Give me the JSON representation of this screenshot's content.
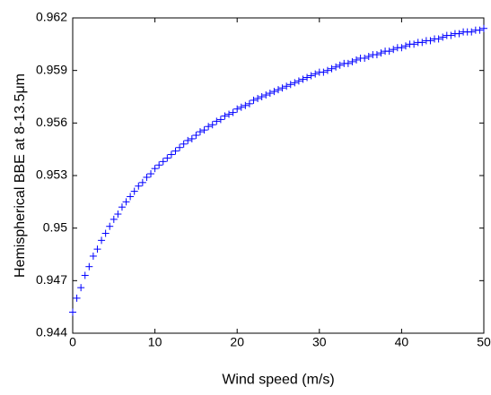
{
  "chart_data": {
    "type": "scatter",
    "title": "",
    "xlabel": "Wind speed (m/s)",
    "ylabel": "Hemispherical BBE at 8-13.5μm",
    "xlim": [
      0,
      50
    ],
    "ylim": [
      0.944,
      0.962
    ],
    "xticks": [
      0,
      10,
      20,
      30,
      40,
      50
    ],
    "xtick_labels": [
      "0",
      "10",
      "20",
      "30",
      "40",
      "50"
    ],
    "yticks": [
      0.944,
      0.947,
      0.95,
      0.953,
      0.956,
      0.959,
      0.962
    ],
    "ytick_labels": [
      "0.944",
      "0.947",
      "0.95",
      "0.953",
      "0.956",
      "0.959",
      "0.962"
    ],
    "grid": false,
    "legend": "none",
    "marker": "+",
    "marker_color": "#0000ff",
    "series": [
      {
        "x": [
          0,
          0.5,
          1,
          1.5,
          2,
          2.5,
          3,
          3.5,
          4,
          4.5,
          5,
          5.5,
          6,
          6.5,
          7,
          7.5,
          8,
          8.5,
          9,
          9.5,
          10,
          10.5,
          11,
          11.5,
          12,
          12.5,
          13,
          13.5,
          14,
          14.5,
          15,
          15.5,
          16,
          16.5,
          17,
          17.5,
          18,
          18.5,
          19,
          19.5,
          20,
          20.5,
          21,
          21.5,
          22,
          22.5,
          23,
          23.5,
          24,
          24.5,
          25,
          25.5,
          26,
          26.5,
          27,
          27.5,
          28,
          28.5,
          29,
          29.5,
          30,
          30.5,
          31,
          31.5,
          32,
          32.5,
          33,
          33.5,
          34,
          34.5,
          35,
          35.5,
          36,
          36.5,
          37,
          37.5,
          38,
          38.5,
          39,
          39.5,
          40,
          40.5,
          41,
          41.5,
          42,
          42.5,
          43,
          43.5,
          44,
          44.5,
          45,
          45.5,
          46,
          46.5,
          47,
          47.5,
          48,
          48.5,
          49,
          49.5,
          50
        ],
        "y": [
          0.9452,
          0.946,
          0.9466,
          0.9473,
          0.9478,
          0.9484,
          0.9488,
          0.9493,
          0.9497,
          0.9501,
          0.9505,
          0.9508,
          0.9512,
          0.9515,
          0.9518,
          0.9521,
          0.9524,
          0.9526,
          0.9529,
          0.9531,
          0.9534,
          0.9536,
          0.9538,
          0.954,
          0.9542,
          0.9544,
          0.9546,
          0.9548,
          0.955,
          0.9551,
          0.9553,
          0.9555,
          0.9556,
          0.9558,
          0.9559,
          0.9561,
          0.9562,
          0.9564,
          0.9565,
          0.9566,
          0.9568,
          0.9569,
          0.957,
          0.9571,
          0.9573,
          0.9574,
          0.9575,
          0.9576,
          0.9577,
          0.9578,
          0.9579,
          0.958,
          0.9581,
          0.9582,
          0.9583,
          0.9584,
          0.9585,
          0.9586,
          0.9587,
          0.9588,
          0.9589,
          0.9589,
          0.959,
          0.9591,
          0.9592,
          0.9593,
          0.9594,
          0.9594,
          0.9595,
          0.9596,
          0.9597,
          0.9597,
          0.9598,
          0.9599,
          0.9599,
          0.96,
          0.9601,
          0.9601,
          0.9602,
          0.9603,
          0.9603,
          0.9604,
          0.9605,
          0.9605,
          0.9606,
          0.9606,
          0.9607,
          0.9607,
          0.9608,
          0.9608,
          0.9609,
          0.961,
          0.961,
          0.9611,
          0.9611,
          0.9612,
          0.9612,
          0.9612,
          0.9613,
          0.9613,
          0.9614
        ]
      }
    ]
  }
}
